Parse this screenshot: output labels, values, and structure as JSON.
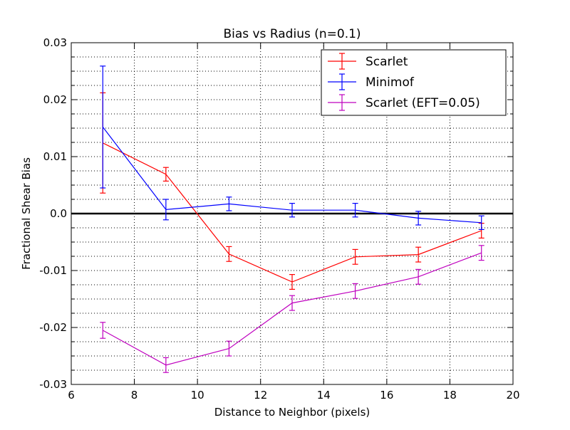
{
  "chart_data": {
    "type": "line",
    "title": "Bias vs Radius (n=0.1)",
    "xlabel": "Distance to Neighbor (pixels)",
    "ylabel": "Fractional Shear Bias",
    "xlim": [
      6,
      20
    ],
    "ylim": [
      -0.03,
      0.03
    ],
    "xticks": [
      6,
      8,
      10,
      12,
      14,
      16,
      18,
      20
    ],
    "xtick_labels": [
      "6",
      "8",
      "10",
      "12",
      "14",
      "16",
      "18",
      "20"
    ],
    "yticks": [
      -0.03,
      -0.02,
      -0.01,
      0.0,
      0.01,
      0.02,
      0.03
    ],
    "ytick_labels": [
      "-0.03",
      "-0.02",
      "-0.01",
      "0.0",
      "0.01",
      "0.02",
      "0.03"
    ],
    "grid": "dotted, major and minor",
    "zero_line": 0.0,
    "legend_position": "top-right",
    "x": [
      7,
      9,
      11,
      13,
      15,
      17,
      19
    ],
    "series": [
      {
        "name": "Scarlet",
        "color": "#ff0000",
        "values": [
          0.0124,
          0.0069,
          -0.0071,
          -0.012,
          -0.0076,
          -0.0072,
          -0.003
        ],
        "errors": [
          0.0088,
          0.0012,
          0.0013,
          0.0013,
          0.0013,
          0.0013,
          0.0013
        ]
      },
      {
        "name": "Minimof",
        "color": "#0000ff",
        "values": [
          0.0152,
          0.0007,
          0.0017,
          0.0006,
          0.0006,
          -0.0008,
          -0.0016
        ],
        "errors": [
          0.0107,
          0.0018,
          0.0012,
          0.0012,
          0.0012,
          0.0012,
          0.0012
        ]
      },
      {
        "name": "Scarlet (EFT=0.05)",
        "color": "#bf00bf",
        "values": [
          -0.0205,
          -0.0266,
          -0.0237,
          -0.0157,
          -0.0136,
          -0.0111,
          -0.0069
        ],
        "errors": [
          0.0014,
          0.0013,
          0.0013,
          0.0013,
          0.0013,
          0.0013,
          0.0013
        ]
      }
    ]
  }
}
